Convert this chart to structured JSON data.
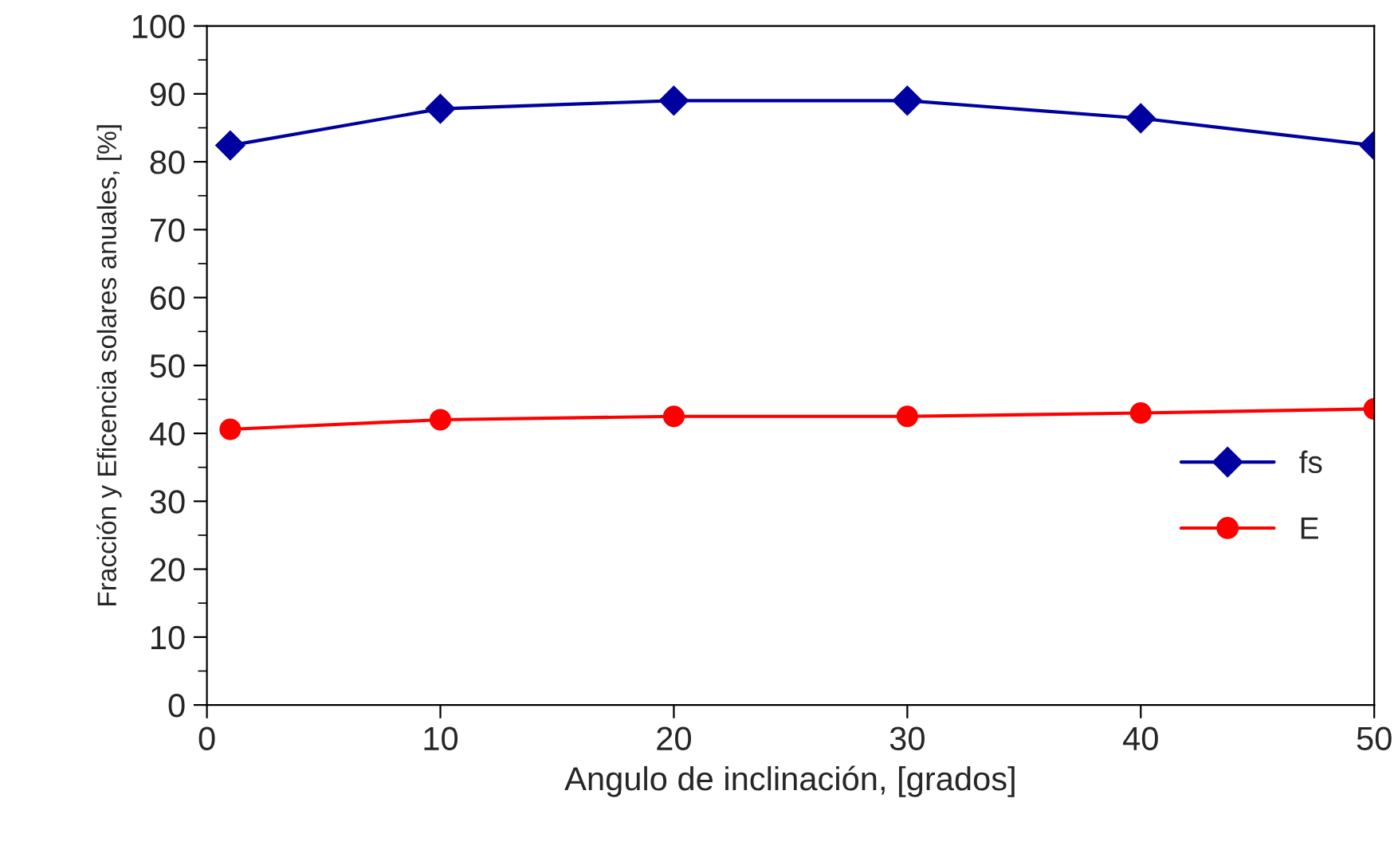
{
  "chart_data": {
    "type": "line",
    "xlabel": "Angulo de inclinación, [grados]",
    "ylabel": "Fracción y Eficencia solares anuales, [%]",
    "x": [
      1,
      10,
      20,
      30,
      40,
      50
    ],
    "series": [
      {
        "name": "fs",
        "color": "#0000a0",
        "marker": "diamond",
        "values": [
          82.4,
          87.8,
          89.0,
          89.0,
          86.4,
          82.4
        ]
      },
      {
        "name": "E",
        "color": "#ff0000",
        "marker": "circle",
        "values": [
          40.6,
          42.0,
          42.5,
          42.5,
          43.0,
          43.6
        ]
      }
    ],
    "xlim": [
      0,
      50
    ],
    "xticks": [
      0,
      10,
      20,
      30,
      40,
      50
    ],
    "ylim": [
      0,
      100
    ],
    "yticks": [
      0,
      10,
      20,
      30,
      40,
      50,
      60,
      70,
      80,
      90,
      100
    ],
    "grid": false,
    "legend": "right",
    "line_style": "solid"
  }
}
